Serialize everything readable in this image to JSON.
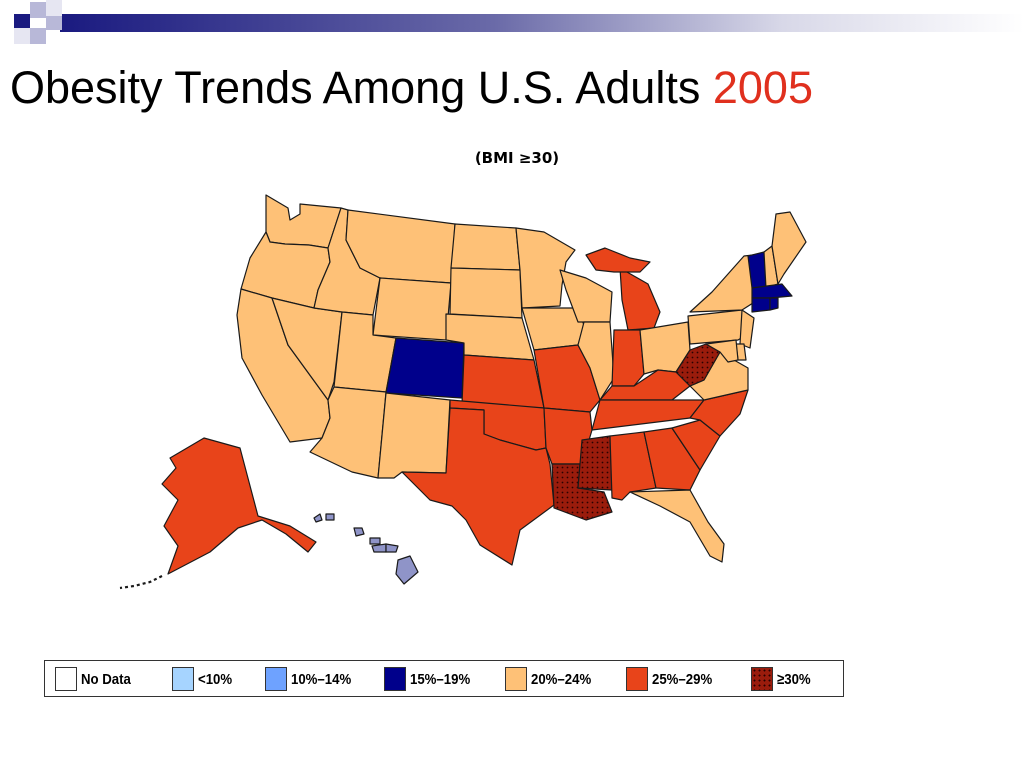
{
  "title": {
    "main": "Obesity Trends Among U.S. Adults",
    "year": "2005",
    "subtitle": "(BMI ≥30)"
  },
  "colors": {
    "no_data": "#ffffff",
    "lt10": "#a6d4ff",
    "10_14": "#6ea2ff",
    "15_19": "#00008b",
    "20_24": "#fec177",
    "25_29": "#e8441a",
    "ge30": "#9a1c0c",
    "hawaii": "#8f94c8"
  },
  "legend": [
    {
      "key": "no_data",
      "label": "No Data"
    },
    {
      "key": "lt10",
      "label": "<10%"
    },
    {
      "key": "10_14",
      "label": "10%–14%"
    },
    {
      "key": "15_19",
      "label": "15%–19%"
    },
    {
      "key": "20_24",
      "label": "20%–24%"
    },
    {
      "key": "25_29",
      "label": "25%–29%"
    },
    {
      "key": "ge30",
      "label": "≥30%"
    }
  ],
  "states": {
    "WA": "20_24",
    "OR": "20_24",
    "CA": "20_24",
    "NV": "20_24",
    "ID": "20_24",
    "MT": "20_24",
    "WY": "20_24",
    "UT": "20_24",
    "AZ": "20_24",
    "NM": "20_24",
    "CO": "15_19",
    "ND": "20_24",
    "SD": "20_24",
    "NE": "20_24",
    "KS": "25_29",
    "OK": "25_29",
    "TX": "25_29",
    "MN": "20_24",
    "IA": "20_24",
    "MO": "25_29",
    "AR": "25_29",
    "LA": "ge30",
    "WI": "20_24",
    "IL": "20_24",
    "MS": "ge30",
    "MI": "25_29",
    "IN": "25_29",
    "KY": "25_29",
    "TN": "25_29",
    "AL": "25_29",
    "GA": "25_29",
    "FL": "20_24",
    "SC": "25_29",
    "NC": "25_29",
    "VA": "20_24",
    "WV": "ge30",
    "OH": "20_24",
    "PA": "20_24",
    "NY": "20_24",
    "VT": "15_19",
    "NH": "20_24",
    "ME": "20_24",
    "MA": "15_19",
    "RI": "15_19",
    "CT": "15_19",
    "NJ": "20_24",
    "DE": "20_24",
    "MD": "20_24",
    "AK": "25_29",
    "HI": "hawaii"
  }
}
